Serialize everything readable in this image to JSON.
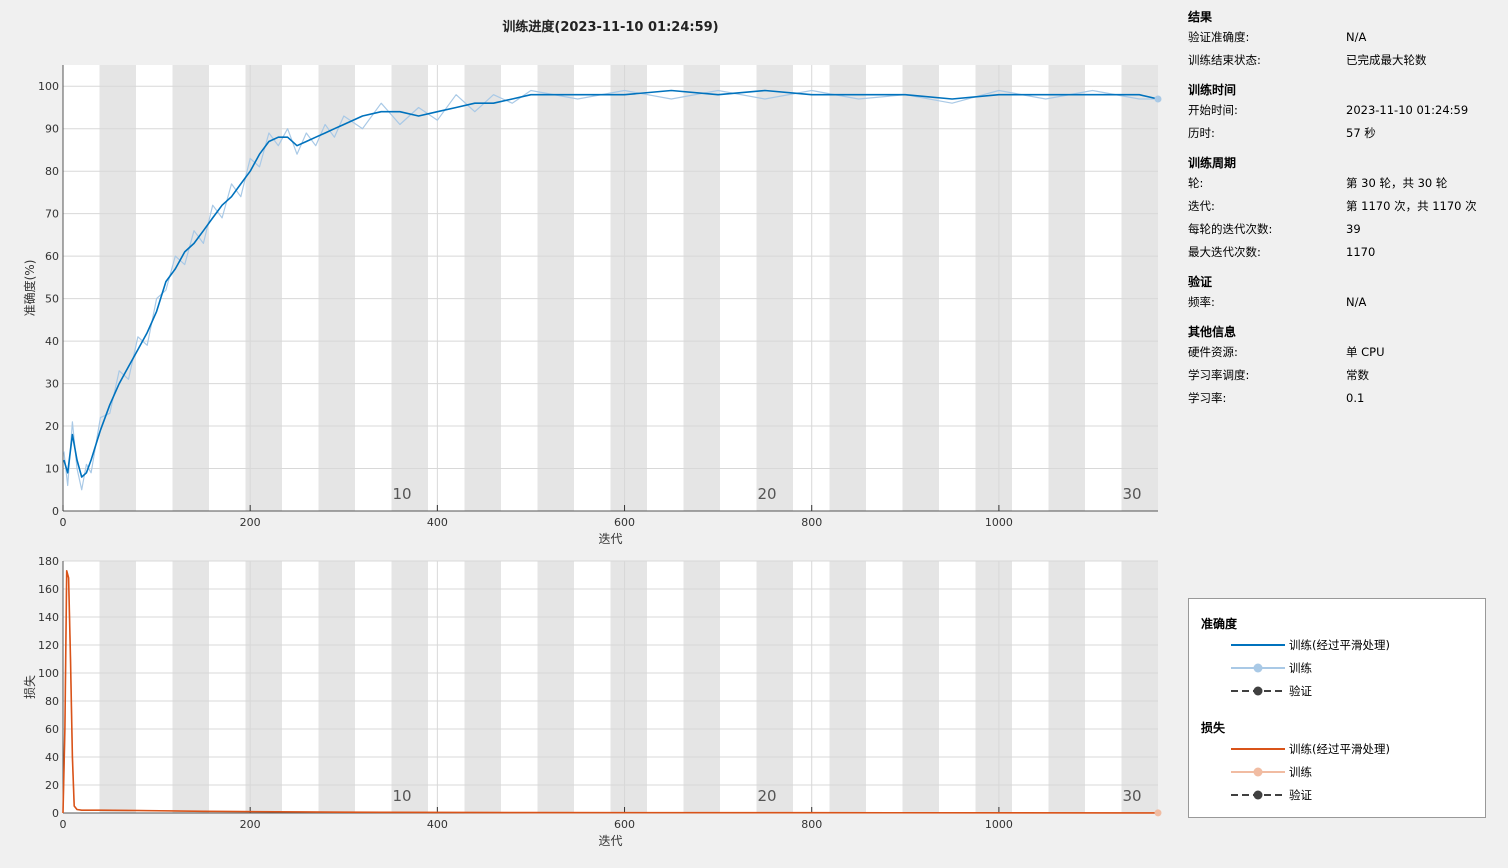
{
  "title": "训练进度(2023-11-10 01:24:59)",
  "colors": {
    "accuracy_smoothed": "#0072bd",
    "accuracy_raw": "#a9c9e6",
    "loss_smoothed": "#d95319",
    "loss_raw": "#f1bca2",
    "validation": "#404040",
    "epoch_band": "#e5e5e5"
  },
  "chart_data": [
    {
      "type": "line",
      "xlabel": "迭代",
      "ylabel": "准确度(%)",
      "xlim": [
        0,
        1170
      ],
      "ylim": [
        0,
        105
      ],
      "x_ticks": [
        0,
        200,
        400,
        600,
        800,
        1000
      ],
      "y_ticks": [
        0,
        10,
        20,
        30,
        40,
        50,
        60,
        70,
        80,
        90,
        100
      ],
      "grid": true,
      "epoch_labels": [
        {
          "epoch": "10",
          "iteration": 390
        },
        {
          "epoch": "20",
          "iteration": 780
        },
        {
          "epoch": "30",
          "iteration": 1170
        }
      ],
      "iterations_per_epoch": 39,
      "series": [
        {
          "name": "训练(经过平滑处理)",
          "x": [
            1,
            5,
            10,
            15,
            20,
            25,
            30,
            40,
            50,
            60,
            70,
            80,
            90,
            100,
            110,
            120,
            130,
            140,
            150,
            160,
            170,
            180,
            190,
            200,
            210,
            220,
            230,
            240,
            250,
            260,
            270,
            280,
            290,
            300,
            320,
            340,
            360,
            380,
            400,
            420,
            440,
            460,
            480,
            500,
            550,
            600,
            650,
            700,
            750,
            800,
            850,
            900,
            950,
            1000,
            1050,
            1100,
            1150,
            1170
          ],
          "y": [
            12,
            9,
            18,
            12,
            8,
            9,
            12,
            19,
            25,
            30,
            34,
            38,
            42,
            47,
            54,
            57,
            61,
            63,
            66,
            69,
            72,
            74,
            77,
            80,
            84,
            87,
            88,
            88,
            86,
            87,
            88,
            89,
            90,
            91,
            93,
            94,
            94,
            93,
            94,
            95,
            96,
            96,
            97,
            98,
            98,
            98,
            99,
            98,
            99,
            98,
            98,
            98,
            97,
            98,
            98,
            98,
            98,
            97
          ]
        },
        {
          "name": "训练",
          "x": [
            1,
            5,
            10,
            15,
            20,
            25,
            30,
            40,
            50,
            60,
            70,
            80,
            90,
            100,
            110,
            120,
            130,
            140,
            150,
            160,
            170,
            180,
            190,
            200,
            210,
            220,
            230,
            240,
            250,
            260,
            270,
            280,
            290,
            300,
            320,
            340,
            360,
            380,
            400,
            420,
            440,
            460,
            480,
            500,
            550,
            600,
            650,
            700,
            750,
            800,
            850,
            900,
            950,
            1000,
            1050,
            1100,
            1150,
            1170
          ],
          "y": [
            14,
            6,
            21,
            10,
            5,
            11,
            9,
            22,
            23,
            33,
            31,
            41,
            39,
            50,
            52,
            60,
            58,
            66,
            63,
            72,
            69,
            77,
            74,
            83,
            81,
            89,
            86,
            90,
            84,
            89,
            86,
            91,
            88,
            93,
            90,
            96,
            91,
            95,
            92,
            98,
            94,
            98,
            96,
            99,
            97,
            99,
            97,
            99,
            97,
            99,
            97,
            98,
            96,
            99,
            97,
            99,
            97,
            97
          ]
        }
      ]
    },
    {
      "type": "line",
      "xlabel": "迭代",
      "ylabel": "损失",
      "xlim": [
        0,
        1170
      ],
      "ylim": [
        0,
        180
      ],
      "x_ticks": [
        0,
        200,
        400,
        600,
        800,
        1000
      ],
      "y_ticks": [
        0,
        20,
        40,
        60,
        80,
        100,
        120,
        140,
        160,
        180
      ],
      "grid": true,
      "epoch_labels": [
        {
          "epoch": "10",
          "iteration": 390
        },
        {
          "epoch": "20",
          "iteration": 780
        },
        {
          "epoch": "30",
          "iteration": 1170
        }
      ],
      "series": [
        {
          "name": "训练(经过平滑处理)",
          "x": [
            0,
            2,
            4,
            6,
            8,
            10,
            12,
            15,
            20,
            40,
            80,
            150,
            300,
            500,
            800,
            1170
          ],
          "y": [
            0,
            60,
            173,
            168,
            110,
            40,
            5,
            2.5,
            2,
            2,
            1.8,
            1.2,
            0.6,
            0.3,
            0.2,
            0.1
          ]
        },
        {
          "name": "训练",
          "x": [
            0,
            2,
            4,
            6,
            8,
            10,
            12,
            15,
            20,
            40,
            80,
            150,
            300,
            500,
            800,
            1170
          ],
          "y": [
            0,
            60,
            173,
            168,
            110,
            40,
            5,
            2.5,
            2,
            2,
            1.8,
            1.2,
            0.6,
            0.3,
            0.2,
            0.1
          ]
        }
      ]
    }
  ],
  "info": {
    "sections": [
      {
        "title": "结果",
        "rows": [
          {
            "k": "验证准确度:",
            "v": "N/A"
          },
          {
            "k": "训练结束状态:",
            "v": "已完成最大轮数"
          }
        ]
      },
      {
        "title": "训练时间",
        "rows": [
          {
            "k": "开始时间:",
            "v": "2023-11-10 01:24:59"
          },
          {
            "k": "历时:",
            "v": "57 秒"
          }
        ]
      },
      {
        "title": "训练周期",
        "rows": [
          {
            "k": "轮:",
            "v": "第 30 轮，共 30 轮"
          },
          {
            "k": "迭代:",
            "v": "第 1170 次，共 1170 次"
          },
          {
            "k": "每轮的迭代次数:",
            "v": "39"
          },
          {
            "k": "最大迭代次数:",
            "v": "1170"
          }
        ]
      },
      {
        "title": "验证",
        "rows": [
          {
            "k": "频率:",
            "v": "N/A"
          }
        ]
      },
      {
        "title": "其他信息",
        "rows": [
          {
            "k": "硬件资源:",
            "v": "单 CPU"
          },
          {
            "k": "学习率调度:",
            "v": "常数"
          },
          {
            "k": "学习率:",
            "v": "0.1"
          }
        ]
      }
    ]
  },
  "legend": {
    "accuracy_title": "准确度",
    "loss_title": "损失",
    "acc_smoothed": "训练(经过平滑处理)",
    "acc_train": "训练",
    "acc_val": "验证",
    "loss_smoothed": "训练(经过平滑处理)",
    "loss_train": "训练",
    "loss_val": "验证"
  }
}
